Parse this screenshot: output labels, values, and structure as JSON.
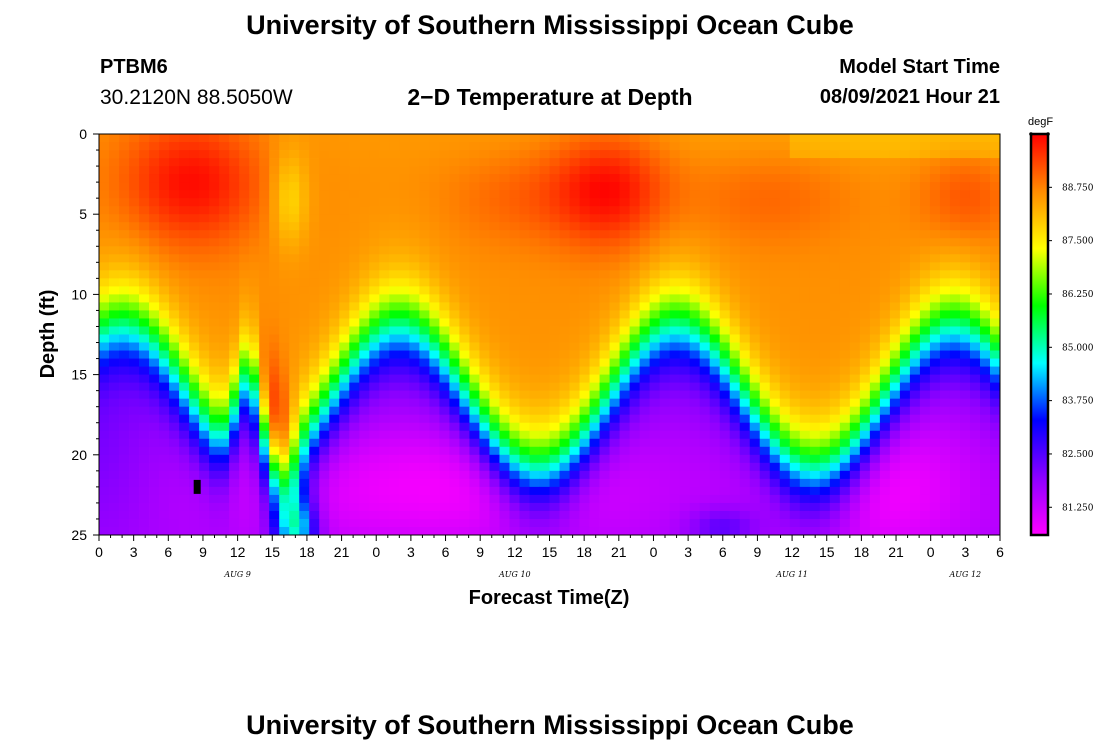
{
  "header": {
    "title": "University of Southern Mississippi Ocean Cube",
    "station": "PTBM6",
    "coords": "30.2120N  88.5050W",
    "subtitle": "2−D Temperature at Depth",
    "model_start_label": "Model Start Time",
    "model_start_value": "08/09/2021 Hour 21"
  },
  "footer": {
    "title": "University of Southern Mississippi Ocean Cube"
  },
  "chart_data": {
    "type": "heatmap",
    "title": "2−D Temperature at Depth",
    "xlabel": "Forecast Time(Z)",
    "ylabel": "Depth (ft)",
    "y_ticks": [
      0,
      5,
      10,
      15,
      20,
      25
    ],
    "ylim": [
      0,
      25
    ],
    "y_inverted": true,
    "x_tick_labels": [
      "0",
      "3",
      "6",
      "9",
      "12",
      "15",
      "18",
      "21",
      "0",
      "3",
      "6",
      "9",
      "12",
      "15",
      "18",
      "21",
      "0",
      "3",
      "6",
      "9",
      "12",
      "15",
      "18",
      "21",
      "0",
      "3",
      "6"
    ],
    "day_labels": [
      {
        "label": "AUG 9",
        "at_tick": 4
      },
      {
        "label": "AUG 10",
        "at_tick": 12
      },
      {
        "label": "AUG 11",
        "at_tick": 20
      },
      {
        "label": "AUG 12",
        "at_tick": 25
      }
    ],
    "colorbar": {
      "unit": "degF",
      "ticks": [
        "88.750",
        "87.500",
        "86.250",
        "85.000",
        "83.750",
        "82.500",
        "81.250"
      ],
      "tick_values": [
        88.75,
        87.5,
        86.25,
        85.0,
        83.75,
        82.5,
        81.25
      ],
      "range": [
        80.6,
        90.0
      ],
      "colormap": [
        "#ff00ff",
        "#8c00ff",
        "#0000ff",
        "#00ffff",
        "#00ff00",
        "#ffff00",
        "#ff8c00",
        "#ff0000"
      ]
    },
    "marker": {
      "hour": 8.5,
      "depth": 22
    }
  }
}
